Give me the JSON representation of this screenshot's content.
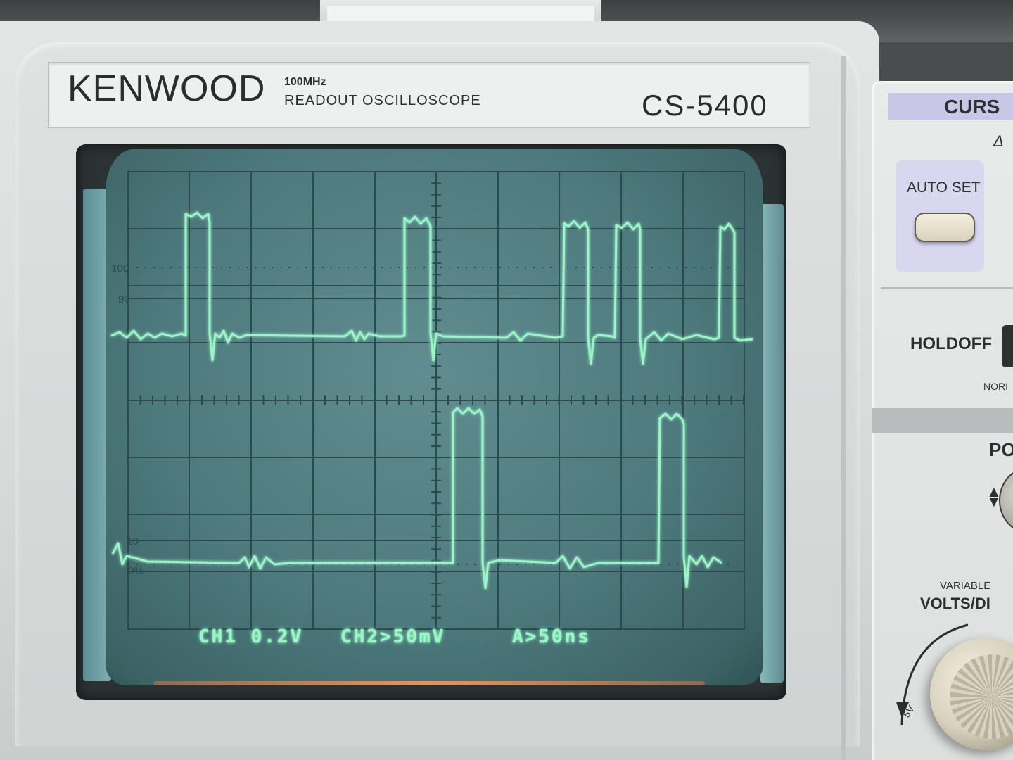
{
  "device": {
    "brand": "KENWOOD",
    "spec_freq": "100MHz",
    "spec_desc": "READOUT OSCILLOSCOPE",
    "model": "CS-5400"
  },
  "screen": {
    "graticule_labels": {
      "l100": "100",
      "l90": "90",
      "l10": "10",
      "l0": "0%"
    },
    "readout": {
      "ch1": "CH1 0.2V",
      "ch2": "CH2>50mV",
      "timebase": "A>50ns"
    },
    "trace_color": "#9cf5c8",
    "screen_color": "#4d7a7d"
  },
  "panel": {
    "cursor_label": "CURS",
    "delta_icon": "delta-icon",
    "autoset_label": "AUTO SET",
    "holdoff_label": "HOLDOFF",
    "norm_label": "NORI",
    "position_label": "PO",
    "variable_label": "VARIABLE",
    "volts_label": "VOLTS/DI",
    "five_v_label": "5V"
  }
}
